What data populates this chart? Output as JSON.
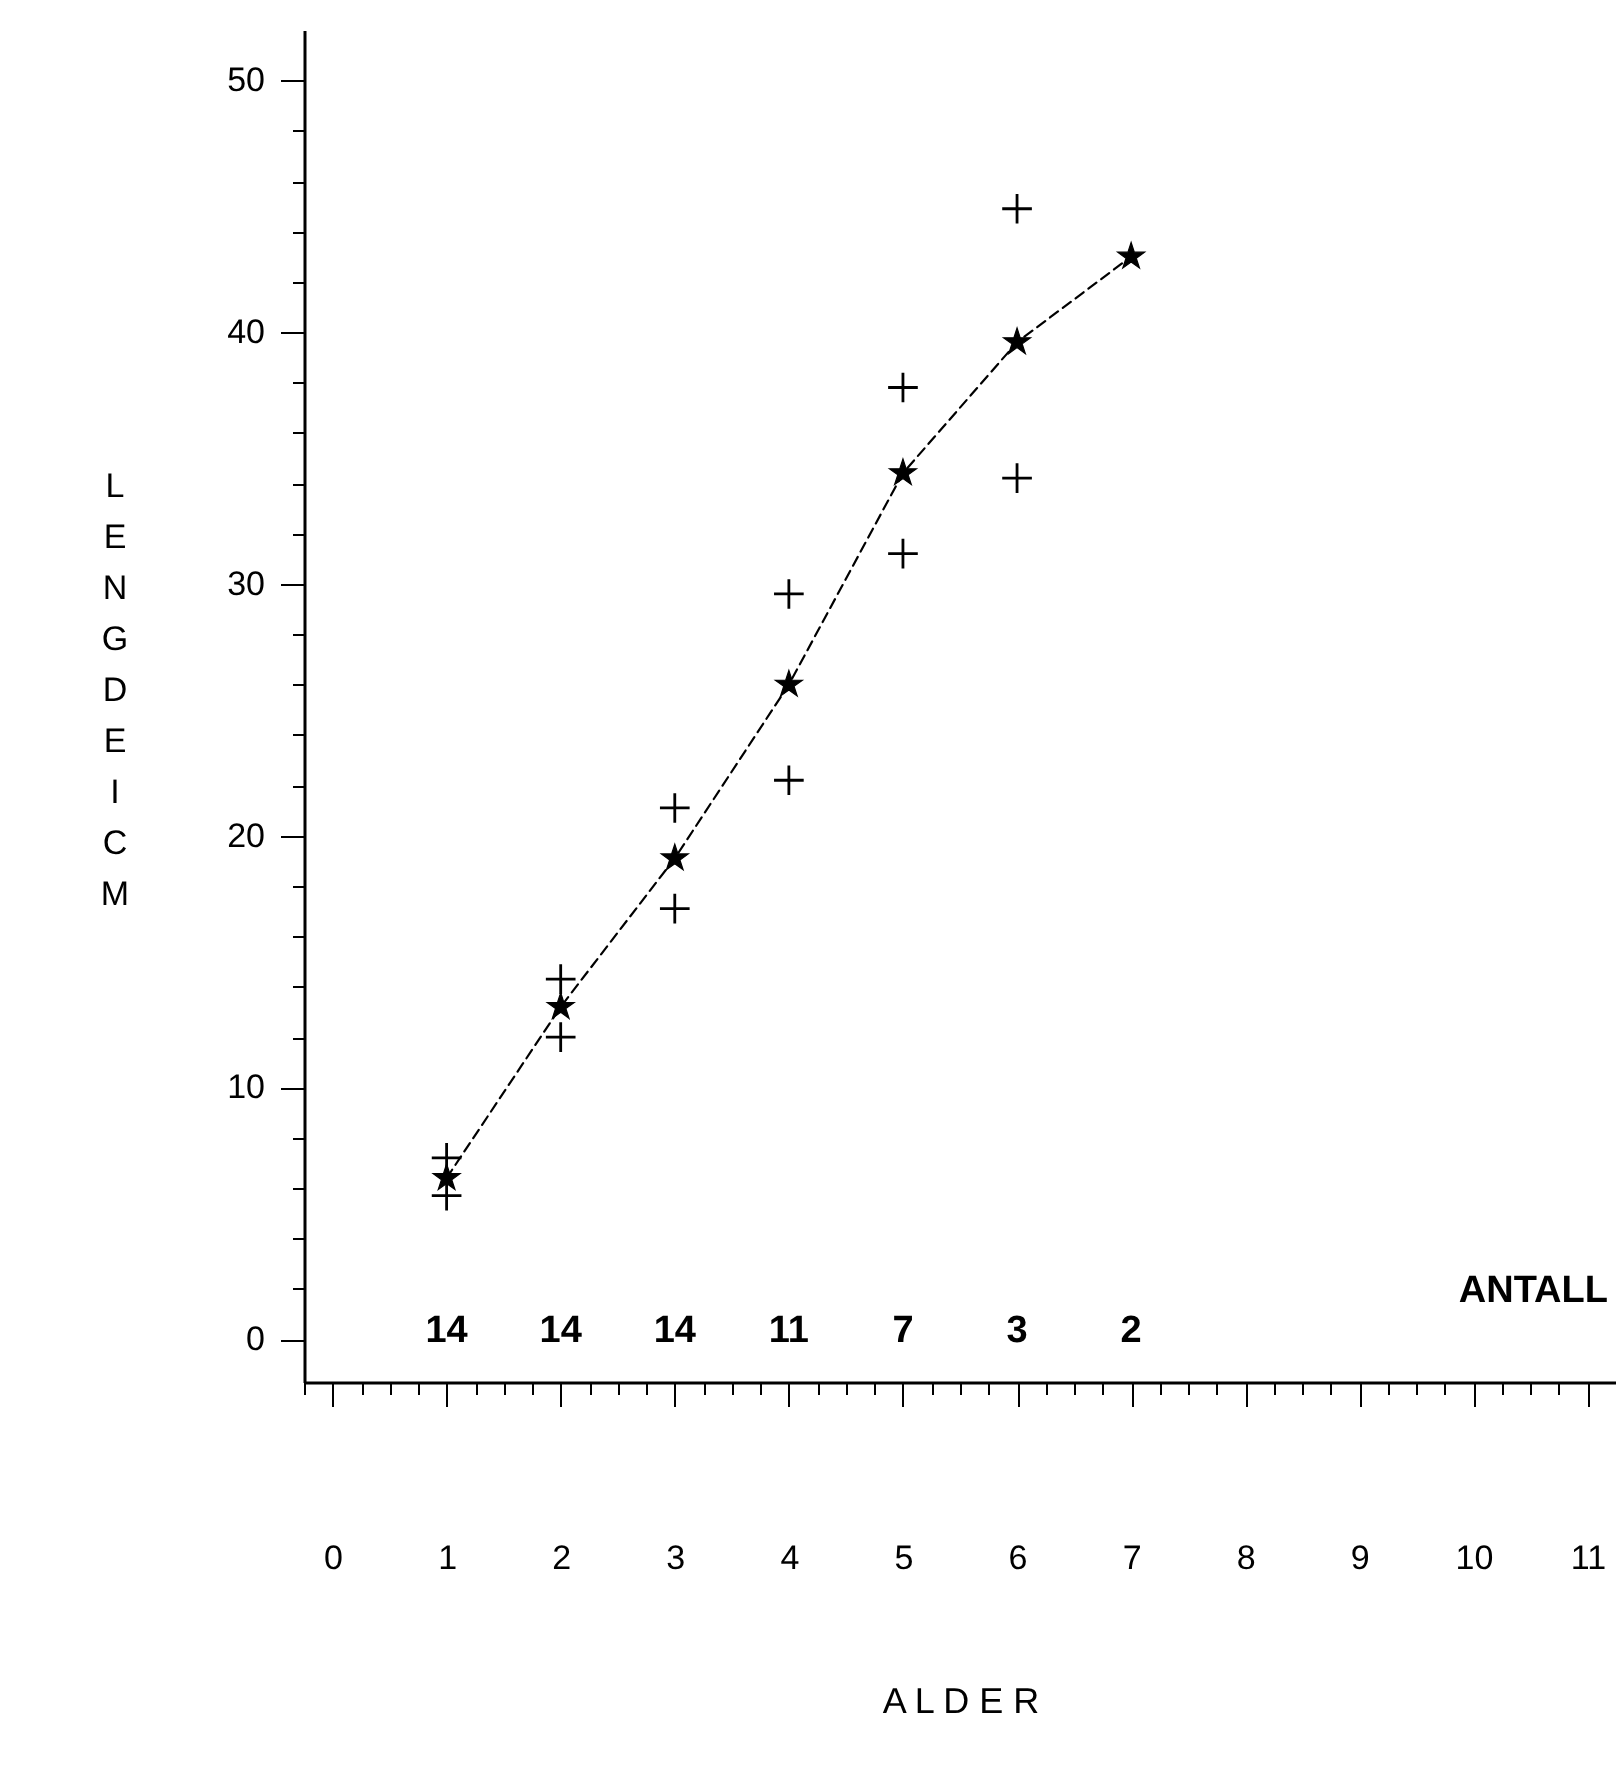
{
  "chart_data": {
    "type": "line",
    "xlabel": "A L D E R",
    "ylabel": "LENGDE I CM",
    "x": [
      1,
      2,
      3,
      4,
      5,
      6,
      7
    ],
    "series": [
      {
        "type": "line",
        "color": "#000000",
        "marker": "star",
        "line_style": "dashed",
        "values": [
          6.4,
          13.2,
          19.1,
          26.0,
          34.4,
          39.6,
          43.0
        ]
      },
      {
        "type": "scatter",
        "color": "#000000",
        "marker": "cross",
        "x": [
          1,
          2,
          3,
          4,
          5,
          6
        ],
        "values": [
          7.2,
          14.3,
          21.1,
          29.6,
          37.8,
          44.9
        ]
      },
      {
        "type": "scatter",
        "color": "#000000",
        "marker": "cross",
        "x": [
          1,
          2,
          3,
          4,
          5,
          6
        ],
        "values": [
          5.7,
          12.0,
          17.1,
          22.2,
          31.2,
          34.2
        ]
      }
    ],
    "xlim": [
      -0.25,
      11.25
    ],
    "xticks": [
      {
        "value": -0.25,
        "label": null
      },
      0,
      {
        "value": 0.25,
        "label": null
      },
      {
        "value": 0.5,
        "label": null
      },
      {
        "value": 0.75,
        "label": null
      },
      1,
      {
        "value": 1.25,
        "label": null
      },
      {
        "value": 1.5,
        "label": null
      },
      {
        "value": 1.75,
        "label": null
      },
      2,
      {
        "value": 2.25,
        "label": null
      },
      {
        "value": 2.5,
        "label": null
      },
      {
        "value": 2.75,
        "label": null
      },
      3,
      {
        "value": 3.25,
        "label": null
      },
      {
        "value": 3.5,
        "label": null
      },
      {
        "value": 3.75,
        "label": null
      },
      4,
      {
        "value": 4.25,
        "label": null
      },
      {
        "value": 4.5,
        "label": null
      },
      {
        "value": 4.75,
        "label": null
      },
      5,
      {
        "value": 5.25,
        "label": null
      },
      {
        "value": 5.5,
        "label": null
      },
      {
        "value": 5.75,
        "label": null
      },
      6,
      {
        "value": 6.25,
        "label": null
      },
      {
        "value": 6.5,
        "label": null
      },
      {
        "value": 6.75,
        "label": null
      },
      7,
      {
        "value": 7.25,
        "label": null
      },
      {
        "value": 7.5,
        "label": null
      },
      {
        "value": 7.75,
        "label": null
      },
      8,
      {
        "value": 8.25,
        "label": null
      },
      {
        "value": 8.5,
        "label": null
      },
      {
        "value": 8.75,
        "label": null
      },
      9,
      {
        "value": 9.25,
        "label": null
      },
      {
        "value": 9.5,
        "label": null
      },
      {
        "value": 9.75,
        "label": null
      },
      10,
      {
        "value": 10.25,
        "label": null
      },
      {
        "value": 10.5,
        "label": null
      },
      {
        "value": 10.75,
        "label": null
      },
      11,
      {
        "value": 11.25,
        "label": null
      }
    ],
    "ylim": [
      -1.7,
      52
    ],
    "yticks": [
      0,
      {
        "value": 2,
        "label": null
      },
      {
        "value": 4,
        "label": null
      },
      {
        "value": 6,
        "label": null
      },
      {
        "value": 8,
        "label": null
      },
      10,
      {
        "value": 12,
        "label": null
      },
      {
        "value": 14,
        "label": null
      },
      {
        "value": 16,
        "label": null
      },
      {
        "value": 18,
        "label": null
      },
      20,
      {
        "value": 22,
        "label": null
      },
      {
        "value": 24,
        "label": null
      },
      {
        "value": 26,
        "label": null
      },
      {
        "value": 28,
        "label": null
      },
      30,
      {
        "value": 32,
        "label": null
      },
      {
        "value": 34,
        "label": null
      },
      {
        "value": 36,
        "label": null
      },
      {
        "value": 38,
        "label": null
      },
      40,
      {
        "value": 42,
        "label": null
      },
      {
        "value": 44,
        "label": null
      },
      {
        "value": 46,
        "label": null
      },
      {
        "value": 48,
        "label": null
      },
      50
    ],
    "annotations": [
      "14",
      "14",
      "14",
      "11",
      "7",
      "3",
      "2",
      "ANTALL"
    ]
  }
}
